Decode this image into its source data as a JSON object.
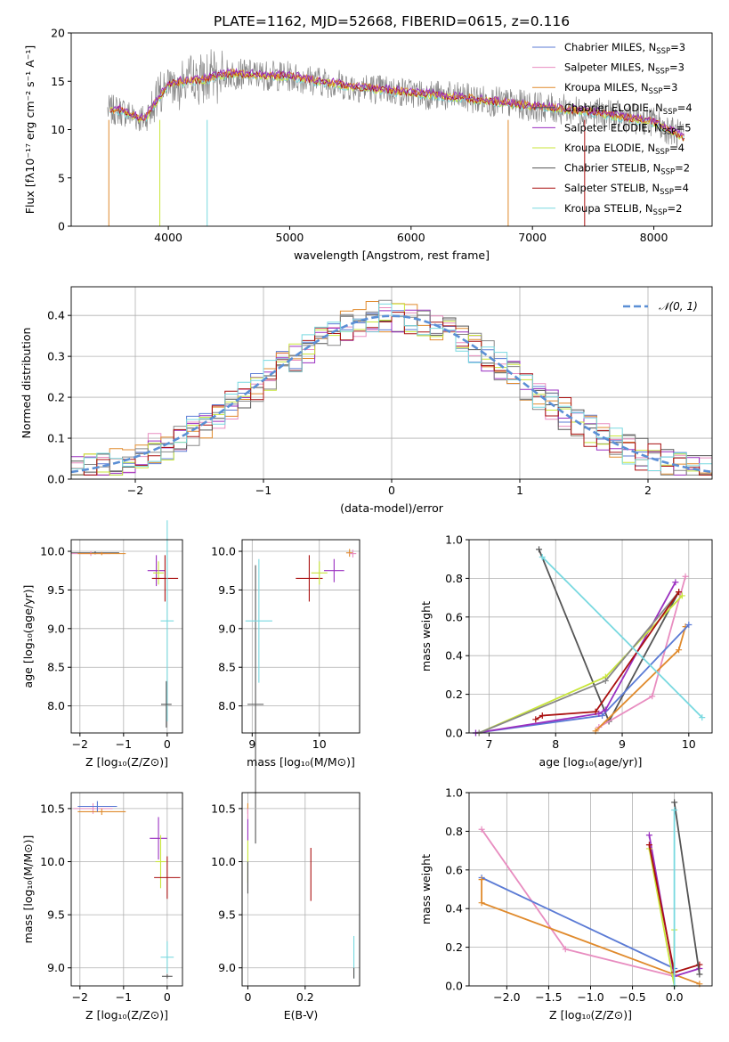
{
  "figure": {
    "title": "PLATE=1162, MJD=52668, FIBERID=0615, z=0.116"
  },
  "colors": {
    "c1": "#5b7bd5",
    "c2": "#e88dc0",
    "c3": "#e08a2c",
    "c4": "#555555",
    "c5": "#9a2fc0",
    "c6": "#c9e63a",
    "c7": "#888888",
    "c8": "#aa1010",
    "c9": "#79d9e0",
    "c10": "#5b8fd5"
  },
  "chart_data": [
    {
      "id": "spectrum",
      "type": "line",
      "xlabel": "wavelength [Angstrom, rest frame]",
      "ylabel": "Flux [fλ10⁻¹⁷ erg cm⁻² s⁻¹ A⁻¹]",
      "xlim": [
        3200,
        8480
      ],
      "ylim": [
        0,
        20
      ],
      "xticks": [
        4000,
        5000,
        6000,
        7000,
        8000
      ],
      "yticks": [
        0,
        5,
        10,
        15,
        20
      ],
      "grid": false,
      "legend_position": "top-right",
      "data_anchor": {
        "x": [
          3600,
          3800,
          4000,
          4300,
          4500,
          5000,
          5500,
          6000,
          6500,
          7000,
          7500,
          8000,
          8250
        ],
        "y": [
          12,
          11,
          14.8,
          15.2,
          15.8,
          15.5,
          14.5,
          13.8,
          13.2,
          12.4,
          11.8,
          10.8,
          9.2
        ]
      },
      "series": [
        {
          "name": "Chabrier MILES, N$_{SSP}$=3",
          "label": "Chabrier MILES, N",
          "sub": "SSP",
          "suffix": "=3",
          "color": "#5b7bd5"
        },
        {
          "name": "Salpeter MILES, N$_{SSP}$=3",
          "label": "Salpeter MILES, N",
          "sub": "SSP",
          "suffix": "=3",
          "color": "#e88dc0"
        },
        {
          "name": "Kroupa MILES, N$_{SSP}$=3",
          "label": "Kroupa MILES, N",
          "sub": "SSP",
          "suffix": "=3",
          "color": "#e08a2c"
        },
        {
          "name": "Chabrier ELODIE, N$_{SSP}$=4",
          "label": "Chabrier ELODIE, N",
          "sub": "SSP",
          "suffix": "=4",
          "color": "#555555"
        },
        {
          "name": "Salpeter ELODIE, N$_{SSP}$=5",
          "label": "Salpeter ELODIE, N",
          "sub": "SSP",
          "suffix": "=5",
          "color": "#9a2fc0"
        },
        {
          "name": "Kroupa ELODIE, N$_{SSP}$=4",
          "label": "Kroupa ELODIE, N",
          "sub": "SSP",
          "suffix": "=4",
          "color": "#c9e63a"
        },
        {
          "name": "Chabrier STELIB, N$_{SSP}$=2",
          "label": "Chabrier STELIB, N",
          "sub": "SSP",
          "suffix": "=2",
          "color": "#555555"
        },
        {
          "name": "Salpeter STELIB, N$_{SSP}$=4",
          "label": "Salpeter STELIB, N",
          "sub": "SSP",
          "suffix": "=4",
          "color": "#aa1010"
        },
        {
          "name": "Kroupa STELIB, N$_{SSP}$=2",
          "label": "Kroupa STELIB, N",
          "sub": "SSP",
          "suffix": "=2",
          "color": "#79d9e0"
        }
      ]
    },
    {
      "id": "residuals",
      "type": "line",
      "xlabel": "(data-model)/error",
      "ylabel": "Normed distribution",
      "xlim": [
        -2.5,
        2.5
      ],
      "ylim": [
        0,
        0.47
      ],
      "xticks": [
        -2,
        -1,
        0,
        1,
        2
      ],
      "yticks": [
        0.0,
        0.1,
        0.2,
        0.3,
        0.4
      ],
      "grid": true,
      "legend_position": "top-right",
      "legend": "𝒩(0, 1)",
      "gaussian": {
        "mean": 0,
        "sigma": 1
      }
    },
    {
      "id": "age_vs_Z",
      "type": "scatter",
      "xlabel": "Z [log₁₀(Z/Z⊙)]",
      "ylabel": "age  [log₁₀(age/yr)]",
      "xlim": [
        -2.2,
        0.35
      ],
      "ylim": [
        7.65,
        10.15
      ],
      "xticks": [
        -2,
        -1,
        0
      ],
      "yticks": [
        8.0,
        8.5,
        9.0,
        9.5,
        10.0
      ],
      "grid": true,
      "points": [
        {
          "x": -1.65,
          "y": 9.98,
          "xerr": 0.55,
          "yerr": 0.02,
          "color": "#555555"
        },
        {
          "x": -1.75,
          "y": 9.97,
          "xerr": 0.45,
          "yerr": 0.03,
          "color": "#e88dc0"
        },
        {
          "x": -1.5,
          "y": 9.97,
          "xerr": 0.55,
          "yerr": 0.02,
          "color": "#e08a2c"
        },
        {
          "x": -0.25,
          "y": 9.75,
          "xerr": 0.2,
          "yerr": 0.2,
          "color": "#9a2fc0"
        },
        {
          "x": -0.2,
          "y": 9.72,
          "xerr": 0.12,
          "yerr": 0.15,
          "color": "#c9e63a"
        },
        {
          "x": -0.05,
          "y": 9.65,
          "xerr": 0.3,
          "yerr": 0.3,
          "color": "#aa1010"
        },
        {
          "x": 0.0,
          "y": 9.1,
          "xerr": 0.15,
          "yerr": 1.3,
          "color": "#79d9e0"
        },
        {
          "x": -0.02,
          "y": 8.02,
          "xerr": 0.12,
          "yerr": 0.3,
          "color": "#555555"
        }
      ]
    },
    {
      "id": "age_vs_mass",
      "type": "scatter",
      "xlabel": "mass [log₁₀(M/M⊙)]",
      "ylabel": "",
      "xlim": [
        8.85,
        10.6
      ],
      "ylim": [
        7.65,
        10.15
      ],
      "xticks": [
        9,
        10
      ],
      "yticks": [
        8.0,
        8.5,
        9.0,
        9.5,
        10.0
      ],
      "grid": true,
      "points": [
        {
          "x": 9.05,
          "y": 8.02,
          "xerr": 0.12,
          "yerr": 1.8,
          "color": "#555555"
        },
        {
          "x": 9.1,
          "y": 9.1,
          "xerr": 0.2,
          "yerr": 0.8,
          "color": "#79d9e0"
        },
        {
          "x": 9.85,
          "y": 9.65,
          "xerr": 0.2,
          "yerr": 0.3,
          "color": "#aa1010"
        },
        {
          "x": 10.0,
          "y": 9.72,
          "xerr": 0.12,
          "yerr": 0.15,
          "color": "#c9e63a"
        },
        {
          "x": 10.22,
          "y": 9.75,
          "xerr": 0.15,
          "yerr": 0.15,
          "color": "#9a2fc0"
        },
        {
          "x": 10.45,
          "y": 9.98,
          "xerr": 0.05,
          "yerr": 0.05,
          "color": "#e08a2c"
        },
        {
          "x": 10.5,
          "y": 9.97,
          "xerr": 0.05,
          "yerr": 0.05,
          "color": "#e88dc0"
        }
      ]
    },
    {
      "id": "weight_vs_age",
      "type": "line",
      "xlabel": "age  [log₁₀(age/yr)]",
      "ylabel": "mass weight",
      "xlim": [
        6.7,
        10.35
      ],
      "ylim": [
        0,
        1.0
      ],
      "xticks": [
        7,
        8,
        9,
        10
      ],
      "yticks": [
        0.0,
        0.2,
        0.4,
        0.6,
        0.8,
        1.0
      ],
      "grid": true,
      "series": [
        {
          "color": "#555555",
          "x": [
            7.75,
            8.8,
            9.85
          ],
          "y": [
            0.95,
            0.06,
            0.73
          ]
        },
        {
          "color": "#e88dc0",
          "x": [
            8.65,
            9.45,
            9.95
          ],
          "y": [
            0.03,
            0.19,
            0.81
          ]
        },
        {
          "color": "#e08a2c",
          "x": [
            8.6,
            9.85,
            9.95
          ],
          "y": [
            0.01,
            0.43,
            0.55
          ]
        },
        {
          "color": "#5b7bd5",
          "x": [
            6.8,
            8.7,
            10.0
          ],
          "y": [
            0.0,
            0.09,
            0.56
          ]
        },
        {
          "color": "#9a2fc0",
          "x": [
            6.8,
            8.65,
            8.75,
            9.8
          ],
          "y": [
            0.0,
            0.1,
            0.12,
            0.78
          ]
        },
        {
          "color": "#c9e63a",
          "x": [
            6.85,
            8.75,
            9.9
          ],
          "y": [
            0.0,
            0.29,
            0.71
          ]
        },
        {
          "color": "#888888",
          "x": [
            6.85,
            8.75,
            9.85
          ],
          "y": [
            0.0,
            0.27,
            0.73
          ]
        },
        {
          "color": "#aa1010",
          "x": [
            7.7,
            7.8,
            8.6,
            9.85
          ],
          "y": [
            0.07,
            0.09,
            0.11,
            0.73
          ]
        },
        {
          "color": "#79d9e0",
          "x": [
            7.8,
            10.2
          ],
          "y": [
            0.91,
            0.08
          ]
        }
      ]
    },
    {
      "id": "mass_vs_Z",
      "type": "scatter",
      "xlabel": "Z [log₁₀(Z/Z⊙)]",
      "ylabel": "mass [log₁₀(M/M⊙)]",
      "xlim": [
        -2.2,
        0.35
      ],
      "ylim": [
        8.83,
        10.65
      ],
      "xticks": [
        -2,
        -1,
        0
      ],
      "yticks": [
        9.0,
        9.5,
        10.0,
        10.5
      ],
      "grid": true,
      "points": [
        {
          "x": -1.7,
          "y": 10.5,
          "xerr": 0.45,
          "yerr": 0.05,
          "color": "#e88dc0"
        },
        {
          "x": -1.5,
          "y": 10.47,
          "xerr": 0.55,
          "yerr": 0.03,
          "color": "#e08a2c"
        },
        {
          "x": -1.6,
          "y": 10.52,
          "xerr": 0.45,
          "yerr": 0.05,
          "color": "#5b7bd5"
        },
        {
          "x": -0.2,
          "y": 10.22,
          "xerr": 0.2,
          "yerr": 0.2,
          "color": "#9a2fc0"
        },
        {
          "x": -0.15,
          "y": 10.0,
          "xerr": 0.12,
          "yerr": 0.25,
          "color": "#c9e63a"
        },
        {
          "x": 0.0,
          "y": 9.85,
          "xerr": 0.3,
          "yerr": 0.2,
          "color": "#aa1010"
        },
        {
          "x": 0.0,
          "y": 9.1,
          "xerr": 0.15,
          "yerr": 0.15,
          "color": "#79d9e0"
        },
        {
          "x": 0.0,
          "y": 8.92,
          "xerr": 0.12,
          "yerr": 0.02,
          "color": "#555555"
        }
      ]
    },
    {
      "id": "mass_vs_EBV",
      "type": "scatter",
      "xlabel": "E(B-V)",
      "ylabel": "",
      "xlim": [
        -0.02,
        0.39
      ],
      "ylim": [
        8.83,
        10.65
      ],
      "xticks": [
        0.0,
        0.2
      ],
      "yticks": [
        9.0,
        9.5,
        10.0,
        10.5
      ],
      "grid": true,
      "points": [
        {
          "x": 0.0,
          "y": 10.5,
          "xerr": 0,
          "yerr": 0.05,
          "color": "#e08a2c"
        },
        {
          "x": 0.0,
          "y": 10.45,
          "xerr": 0,
          "yerr": 0.05,
          "color": "#e88dc0"
        },
        {
          "x": 0.0,
          "y": 10.3,
          "xerr": 0,
          "yerr": 0.1,
          "color": "#9a2fc0"
        },
        {
          "x": 0.0,
          "y": 10.0,
          "xerr": 0,
          "yerr": 0.2,
          "color": "#c9e63a"
        },
        {
          "x": 0.0,
          "y": 9.85,
          "xerr": 0,
          "yerr": 0.15,
          "color": "#555555"
        },
        {
          "x": 0.22,
          "y": 9.88,
          "xerr": 0,
          "yerr": 0.25,
          "color": "#aa1010"
        },
        {
          "x": 0.37,
          "y": 9.1,
          "xerr": 0,
          "yerr": 0.2,
          "color": "#79d9e0"
        },
        {
          "x": 0.37,
          "y": 8.95,
          "xerr": 0,
          "yerr": 0.05,
          "color": "#555555"
        }
      ]
    },
    {
      "id": "weight_vs_Z",
      "type": "line",
      "xlabel": "Z [log₁₀(Z/Z⊙)]",
      "ylabel": "mass weight",
      "xlim": [
        -2.45,
        0.45
      ],
      "ylim": [
        0,
        1.0
      ],
      "xticks": [
        -2.0,
        -1.5,
        -1.0,
        -0.5,
        0.0
      ],
      "yticks": [
        0.0,
        0.2,
        0.4,
        0.6,
        0.8,
        1.0
      ],
      "grid": true,
      "series": [
        {
          "color": "#e88dc0",
          "x": [
            -2.3,
            -1.3,
            0.0
          ],
          "y": [
            0.81,
            0.19,
            0.05
          ]
        },
        {
          "color": "#5b7bd5",
          "x": [
            -2.3,
            0.0
          ],
          "y": [
            0.56,
            0.09
          ]
        },
        {
          "color": "#e08a2c",
          "x": [
            -2.3,
            -2.3,
            0.3
          ],
          "y": [
            0.55,
            0.43,
            0.01
          ]
        },
        {
          "color": "#9a2fc0",
          "x": [
            -0.3,
            0.0,
            0.3
          ],
          "y": [
            0.78,
            0.05,
            0.09
          ]
        },
        {
          "color": "#c9e63a",
          "x": [
            -0.3,
            0.0,
            0.0
          ],
          "y": [
            0.71,
            0.0,
            0.29
          ]
        },
        {
          "color": "#aa1010",
          "x": [
            -0.3,
            0.0,
            0.3
          ],
          "y": [
            0.73,
            0.07,
            0.11
          ]
        },
        {
          "color": "#555555",
          "x": [
            0.0,
            0.3
          ],
          "y": [
            0.95,
            0.06
          ]
        },
        {
          "color": "#79d9e0",
          "x": [
            0.0,
            0.0
          ],
          "y": [
            0.91,
            0.0
          ]
        }
      ]
    }
  ]
}
